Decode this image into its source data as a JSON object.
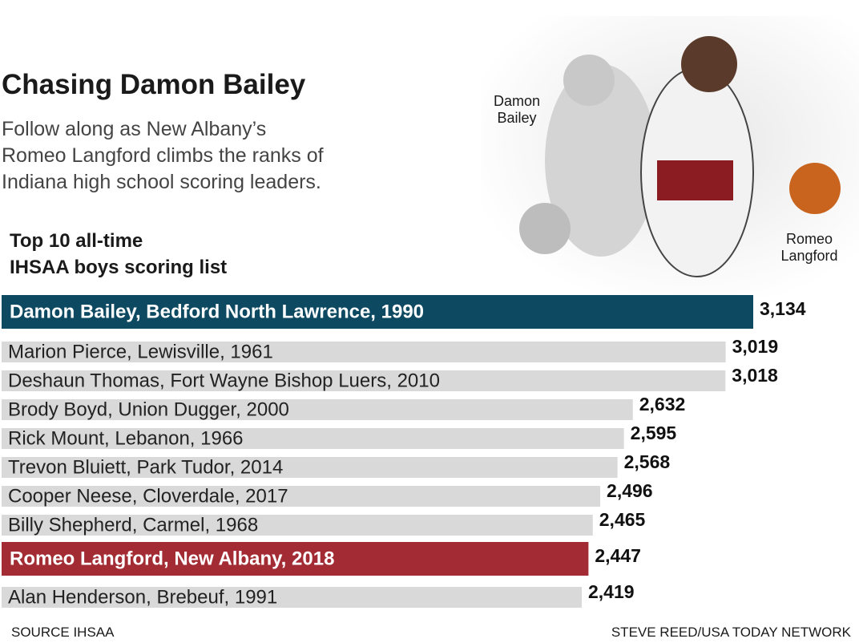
{
  "chart_data": {
    "type": "hbar",
    "title": "Chasing Damon Bailey",
    "subtitle": "Follow along as New Albany’s\nRomeo Langford climbs the ranks of\nIndiana high school scoring leaders.",
    "chart_title": "Top 10 all-time\nIHSAA boys scoring list",
    "annotations": [
      "Damon\nBailey",
      "Romeo\nLangford"
    ],
    "categories": [
      "Damon Bailey, Bedford North Lawrence, 1990",
      "Marion Pierce, Lewisville, 1961",
      "Deshaun Thomas, Fort Wayne Bishop Luers, 2010",
      "Brody Boyd, Union Dugger, 2000",
      "Rick Mount, Lebanon, 1966",
      "Trevon Bluiett, Park Tudor, 2014",
      "Cooper Neese, Cloverdale, 2017",
      "Billy Shepherd, Carmel, 1968",
      "Romeo Langford, New Albany, 2018",
      "Alan Henderson, Brebeuf, 1991"
    ],
    "values": [
      3134,
      3019,
      3018,
      2632,
      2595,
      2568,
      2496,
      2465,
      2447,
      2419
    ],
    "value_labels": [
      "3,134",
      "3,019",
      "3,018",
      "2,632",
      "2,595",
      "2,568",
      "2,496",
      "2,465",
      "2,447",
      "2,419"
    ],
    "colors": [
      "#0d4a62",
      "#d9d9d9",
      "#d9d9d9",
      "#d9d9d9",
      "#d9d9d9",
      "#d9d9d9",
      "#d9d9d9",
      "#d9d9d9",
      "#a32b33",
      "#d9d9d9"
    ],
    "source": "SOURCE IHSAA",
    "credit": "STEVE REED/USA TODAY NETWORK"
  }
}
